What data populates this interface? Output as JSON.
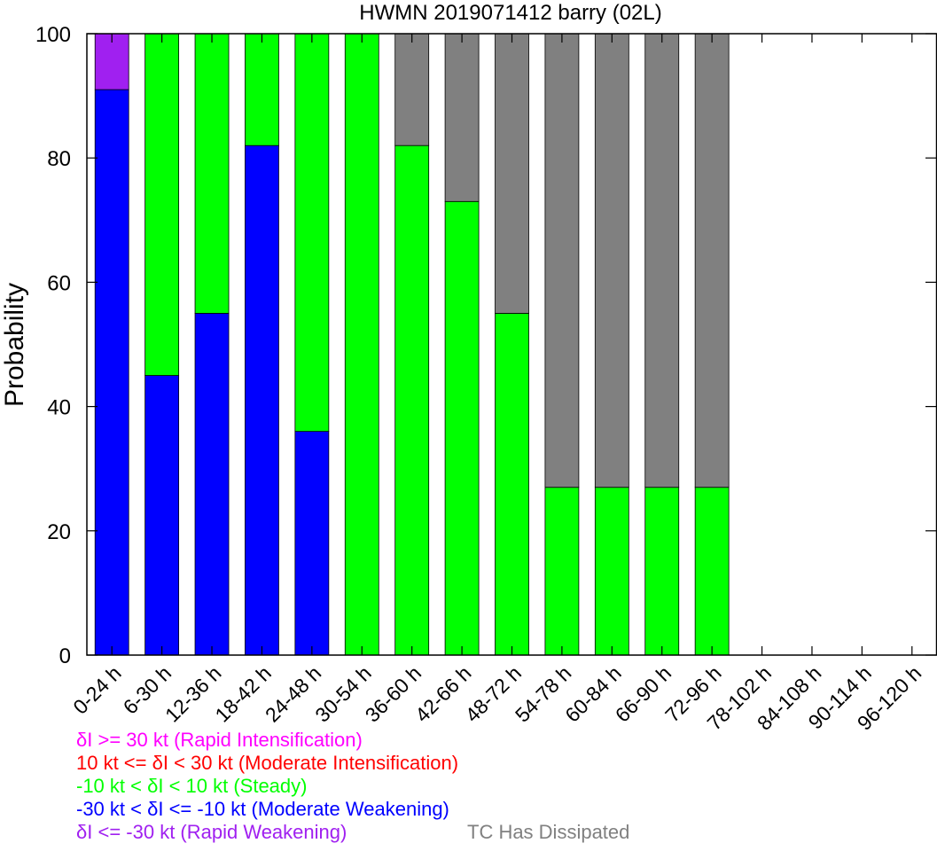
{
  "chart_data": {
    "type": "bar",
    "stacked": true,
    "title": "HWMN 2019071412 barry (02L)",
    "ylabel": "Probability",
    "xlabel": "",
    "ylim": [
      0,
      100
    ],
    "yticks": [
      0,
      20,
      40,
      60,
      80,
      100
    ],
    "grid": false,
    "categories": [
      "0-24 h",
      "6-30 h",
      "12-36 h",
      "18-42 h",
      "24-48 h",
      "30-54 h",
      "36-60 h",
      "42-66 h",
      "48-72 h",
      "54-78 h",
      "60-84 h",
      "66-90 h",
      "72-96 h",
      "78-102 h",
      "84-108 h",
      "90-114 h",
      "96-120 h"
    ],
    "series": [
      {
        "name": "-30 kt < δI <= -10 kt (Moderate Weakening)",
        "color": "#0000ff",
        "values": [
          91,
          45,
          55,
          82,
          36,
          0,
          0,
          0,
          0,
          0,
          0,
          0,
          0,
          0,
          0,
          0,
          0
        ]
      },
      {
        "name": "δI <= -30 kt (Rapid Weakening)",
        "color": "#a020f0",
        "values": [
          9,
          0,
          0,
          0,
          0,
          0,
          0,
          0,
          0,
          0,
          0,
          0,
          0,
          0,
          0,
          0,
          0
        ]
      },
      {
        "name": "-10 kt < δI < 10 kt (Steady)",
        "color": "#00ff00",
        "values": [
          0,
          55,
          45,
          18,
          64,
          100,
          82,
          73,
          55,
          27,
          27,
          27,
          27,
          0,
          0,
          0,
          0
        ]
      },
      {
        "name": "TC Has Dissipated",
        "color": "#808080",
        "values": [
          0,
          0,
          0,
          0,
          0,
          0,
          18,
          27,
          45,
          73,
          73,
          73,
          73,
          0,
          0,
          0,
          0
        ]
      },
      {
        "name": "10 kt <= δI < 30 kt (Moderate Intensification)",
        "color": "#ff0000",
        "values": [
          0,
          0,
          0,
          0,
          0,
          0,
          0,
          0,
          0,
          0,
          0,
          0,
          0,
          0,
          0,
          0,
          0
        ]
      },
      {
        "name": "δI >= 30 kt (Rapid Intensification)",
        "color": "#ff00ff",
        "values": [
          0,
          0,
          0,
          0,
          0,
          0,
          0,
          0,
          0,
          0,
          0,
          0,
          0,
          0,
          0,
          0,
          0
        ]
      }
    ],
    "legend": {
      "placement": "bottom-left",
      "entries": [
        {
          "label": "δI >= 30 kt (Rapid Intensification)",
          "color": "#ff00ff"
        },
        {
          "label": "10 kt <= δI < 30 kt (Moderate Intensification)",
          "color": "#ff0000"
        },
        {
          "label": "-10 kt < δI < 10 kt (Steady)",
          "color": "#00ff00"
        },
        {
          "label": "-30 kt < δI <= -10 kt (Moderate Weakening)",
          "color": "#0000ff"
        },
        {
          "label": "δI <= -30 kt (Rapid Weakening)",
          "color": "#a020f0"
        },
        {
          "label": "TC Has Dissipated",
          "color": "#808080"
        }
      ]
    }
  }
}
